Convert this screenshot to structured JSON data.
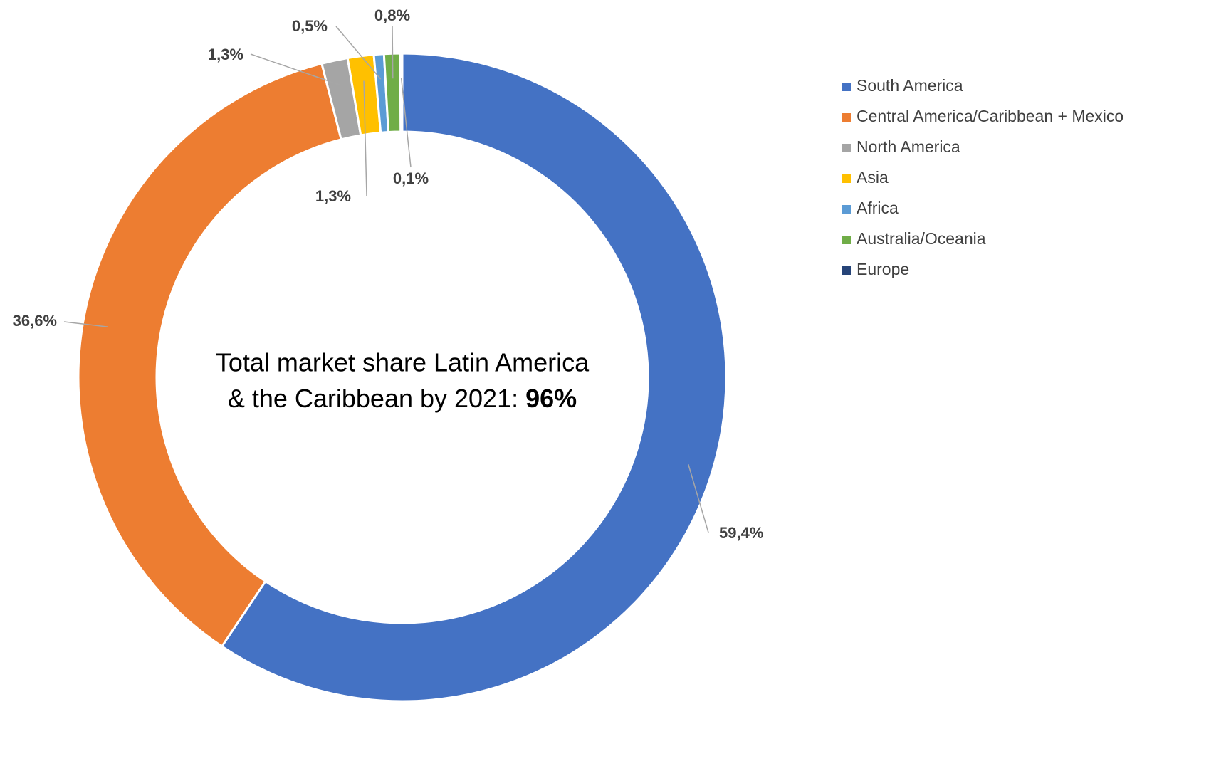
{
  "chart_data": {
    "type": "donut",
    "categories": [
      "South America",
      "Central America/Caribbean + Mexico",
      "North America",
      "Asia",
      "Africa",
      "Australia/Oceania",
      "Europe"
    ],
    "values": [
      59.4,
      36.6,
      1.3,
      1.3,
      0.5,
      0.8,
      0.1
    ],
    "value_labels": [
      "59,4%",
      "36,6%",
      "1,3%",
      "1,3%",
      "0,5%",
      "0,8%",
      "0,1%"
    ],
    "colors": [
      "#4472c4",
      "#ed7d31",
      "#a5a5a5",
      "#ffc000",
      "#5b9bd5",
      "#70ad47",
      "#264478"
    ],
    "center_text": [
      "Total market share Latin America",
      "& the Caribbean by 2021:",
      "96%"
    ],
    "legend": "right"
  }
}
